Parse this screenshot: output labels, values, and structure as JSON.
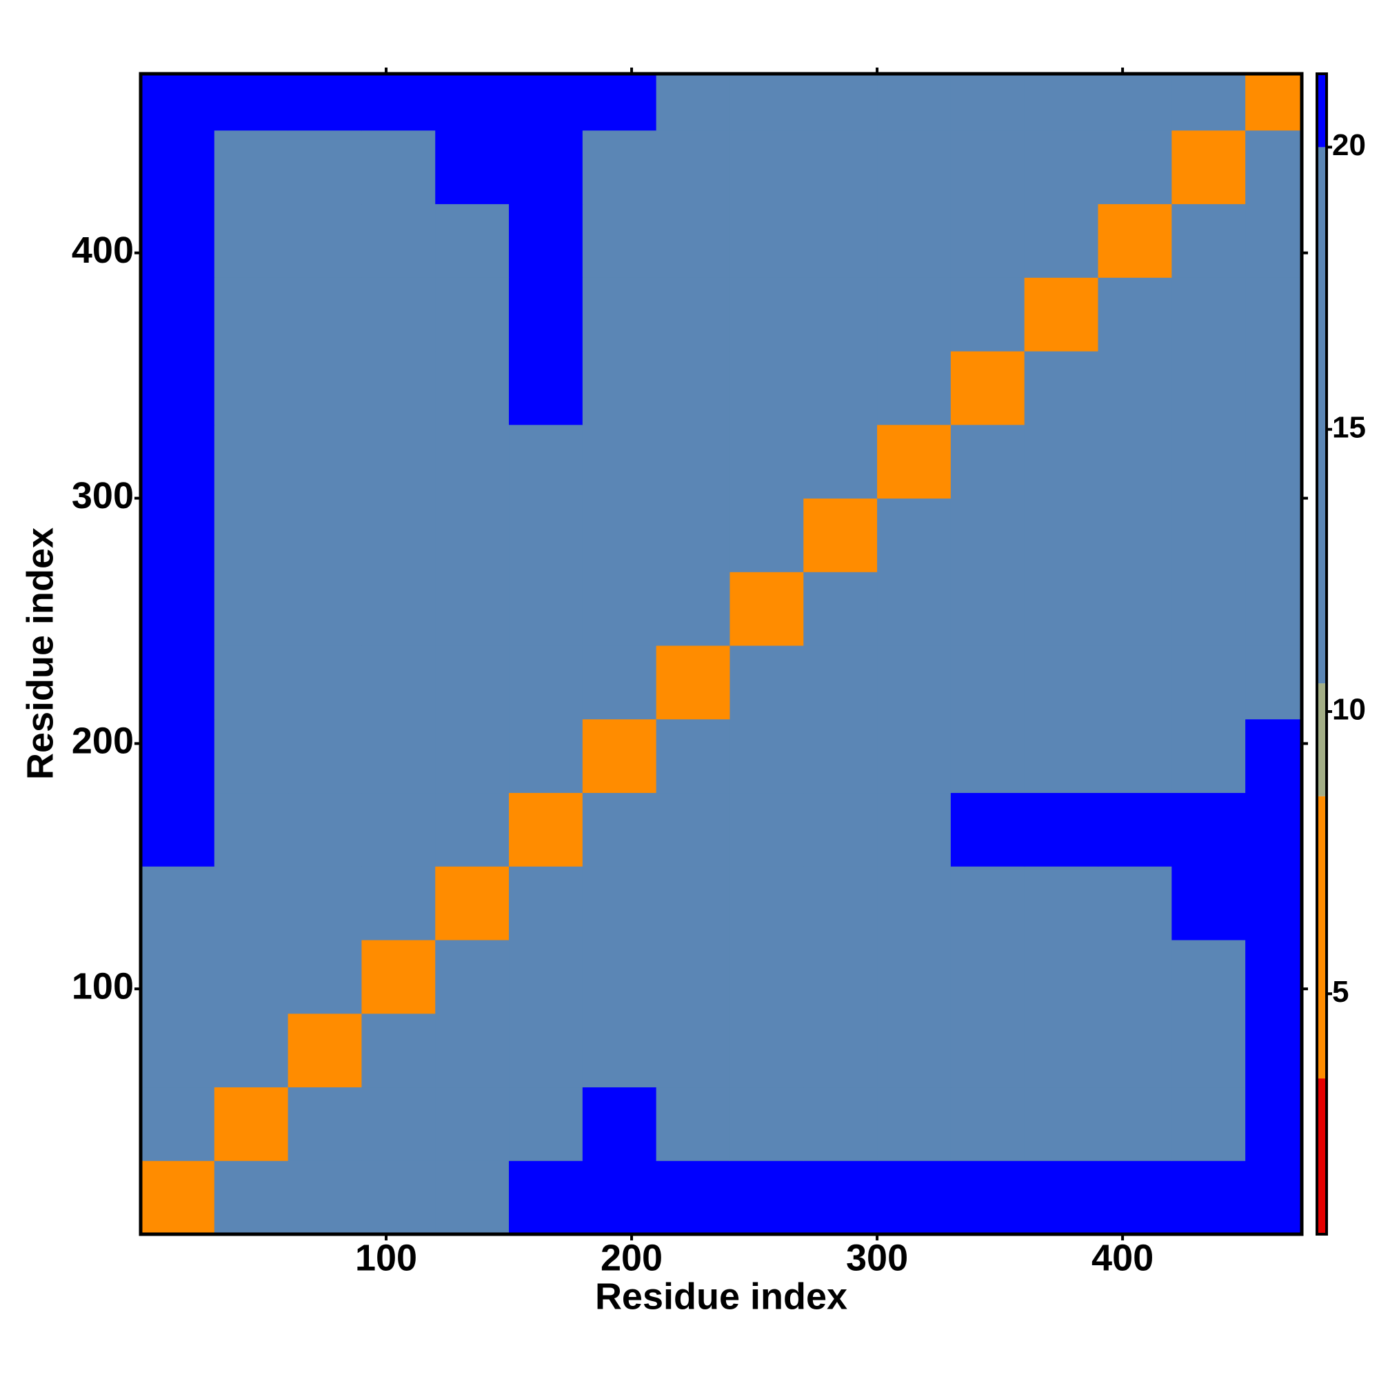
{
  "chart_data": {
    "type": "heatmap",
    "x_label": "Residue index",
    "y_label": "Residue index",
    "x": [
      15,
      45,
      75,
      105,
      135,
      165,
      195,
      225,
      255,
      285,
      315,
      345,
      375,
      405,
      435,
      465
    ],
    "y": [
      15,
      45,
      75,
      105,
      135,
      165,
      195,
      225,
      255,
      285,
      315,
      345,
      375,
      405,
      435,
      465
    ],
    "cell_size": 30,
    "values": [
      [
        6,
        13,
        16,
        18,
        19,
        21,
        21,
        21,
        21,
        21,
        21,
        21,
        21,
        21,
        21,
        21
      ],
      [
        13,
        6,
        12,
        14,
        16,
        17,
        21,
        20,
        19,
        20,
        20,
        20,
        19,
        15,
        19,
        21
      ],
      [
        16,
        12,
        6,
        12,
        14,
        16,
        20,
        19,
        18,
        19,
        20,
        20,
        19,
        16,
        19,
        21
      ],
      [
        18,
        14,
        12,
        6,
        12,
        14,
        19,
        19,
        18,
        18,
        19,
        20,
        19,
        18,
        20,
        21
      ],
      [
        19,
        16,
        14,
        12,
        6,
        12,
        19,
        18,
        18,
        19,
        20,
        20,
        19,
        19,
        21,
        21
      ],
      [
        21,
        17,
        16,
        14,
        12,
        6,
        15,
        19,
        20,
        20,
        20,
        21,
        21,
        21,
        21,
        21
      ],
      [
        21,
        20,
        20,
        19,
        19,
        15,
        6,
        12,
        15,
        16,
        16,
        17,
        17,
        17,
        18,
        21
      ],
      [
        21,
        20,
        19,
        19,
        18,
        19,
        12,
        6,
        12,
        15,
        16,
        16,
        16,
        17,
        17,
        20
      ],
      [
        21,
        19,
        18,
        18,
        18,
        20,
        15,
        12,
        6,
        12,
        15,
        16,
        16,
        17,
        16,
        19
      ],
      [
        21,
        20,
        19,
        18,
        19,
        20,
        16,
        15,
        12,
        6,
        12,
        14,
        16,
        16,
        16,
        17
      ],
      [
        21,
        20,
        20,
        19,
        20,
        20,
        16,
        16,
        15,
        12,
        6,
        12,
        15,
        16,
        16,
        17
      ],
      [
        21,
        20,
        20,
        20,
        20,
        21,
        17,
        16,
        16,
        14,
        12,
        6,
        12,
        15,
        15,
        16
      ],
      [
        21,
        19,
        19,
        19,
        19,
        21,
        17,
        16,
        16,
        16,
        15,
        12,
        6,
        12,
        15,
        16
      ],
      [
        21,
        15,
        16,
        18,
        19,
        21,
        17,
        17,
        17,
        16,
        16,
        15,
        12,
        6,
        12,
        15
      ],
      [
        21,
        19,
        19,
        20,
        21,
        21,
        18,
        17,
        16,
        16,
        16,
        15,
        15,
        12,
        6,
        12
      ],
      [
        21,
        21,
        21,
        21,
        21,
        21,
        21,
        20,
        19,
        17,
        17,
        16,
        16,
        15,
        12,
        6
      ]
    ],
    "xlim": [
      0,
      473
    ],
    "ylim": [
      0,
      473
    ],
    "xticks": [
      100,
      200,
      300,
      400
    ],
    "yticks": [
      100,
      200,
      300,
      400
    ],
    "colorbar": {
      "lim": [
        0.74,
        21.3
      ],
      "ticks": [
        5,
        10,
        15,
        20
      ],
      "scale": [
        {
          "max": 3.5,
          "color": "#e50000"
        },
        {
          "max": 8.5,
          "color": "#ff8c00"
        },
        {
          "max": 10.5,
          "color": "#a3ae86"
        },
        {
          "max": 20,
          "color": "#5b86b5"
        },
        {
          "max": 21.3,
          "color": "#0000ff"
        }
      ]
    }
  }
}
